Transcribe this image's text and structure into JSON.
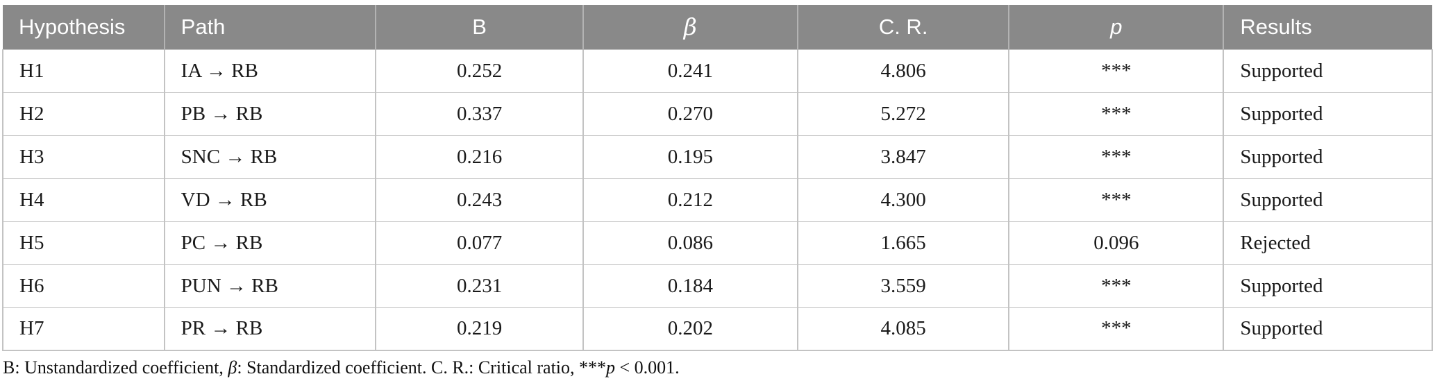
{
  "table": {
    "columns": [
      {
        "label": "Hypothesis",
        "align": "left"
      },
      {
        "label": "Path",
        "align": "left"
      },
      {
        "label": "B",
        "align": "center"
      },
      {
        "label": "β",
        "align": "center",
        "italic": true
      },
      {
        "label": "C. R.",
        "align": "center"
      },
      {
        "label": "p",
        "align": "center",
        "italic": true
      },
      {
        "label": "Results",
        "align": "left"
      }
    ],
    "rows": [
      {
        "cells": [
          "H1",
          "IA → RB",
          "0.252",
          "0.241",
          "4.806",
          "***",
          "Supported"
        ]
      },
      {
        "cells": [
          "H2",
          "PB → RB",
          "0.337",
          "0.270",
          "5.272",
          "***",
          "Supported"
        ]
      },
      {
        "cells": [
          "H3",
          "SNC → RB",
          "0.216",
          "0.195",
          "3.847",
          "***",
          "Supported"
        ]
      },
      {
        "cells": [
          "H4",
          "VD → RB",
          "0.243",
          "0.212",
          "4.300",
          "***",
          "Supported"
        ]
      },
      {
        "cells": [
          "H5",
          "PC → RB",
          "0.077",
          "0.086",
          "1.665",
          "0.096",
          "Rejected"
        ]
      },
      {
        "cells": [
          "H6",
          "PUN → RB",
          "0.231",
          "0.184",
          "3.559",
          "***",
          "Supported"
        ]
      },
      {
        "cells": [
          "H7",
          "PR → RB",
          "0.219",
          "0.202",
          "4.085",
          "***",
          "Supported"
        ]
      }
    ]
  },
  "footnote": {
    "part1": "B: Unstandardized coefficient, ",
    "beta": "β",
    "part2": ": Standardized coefficient. C. R.: Critical ratio, ***",
    "p": "p",
    "part3": " < 0.001."
  },
  "colors": {
    "header_bg": "#898989",
    "header_text": "#ffffff",
    "border": "#c3c3c3",
    "body_text": "#1a1a1a"
  }
}
